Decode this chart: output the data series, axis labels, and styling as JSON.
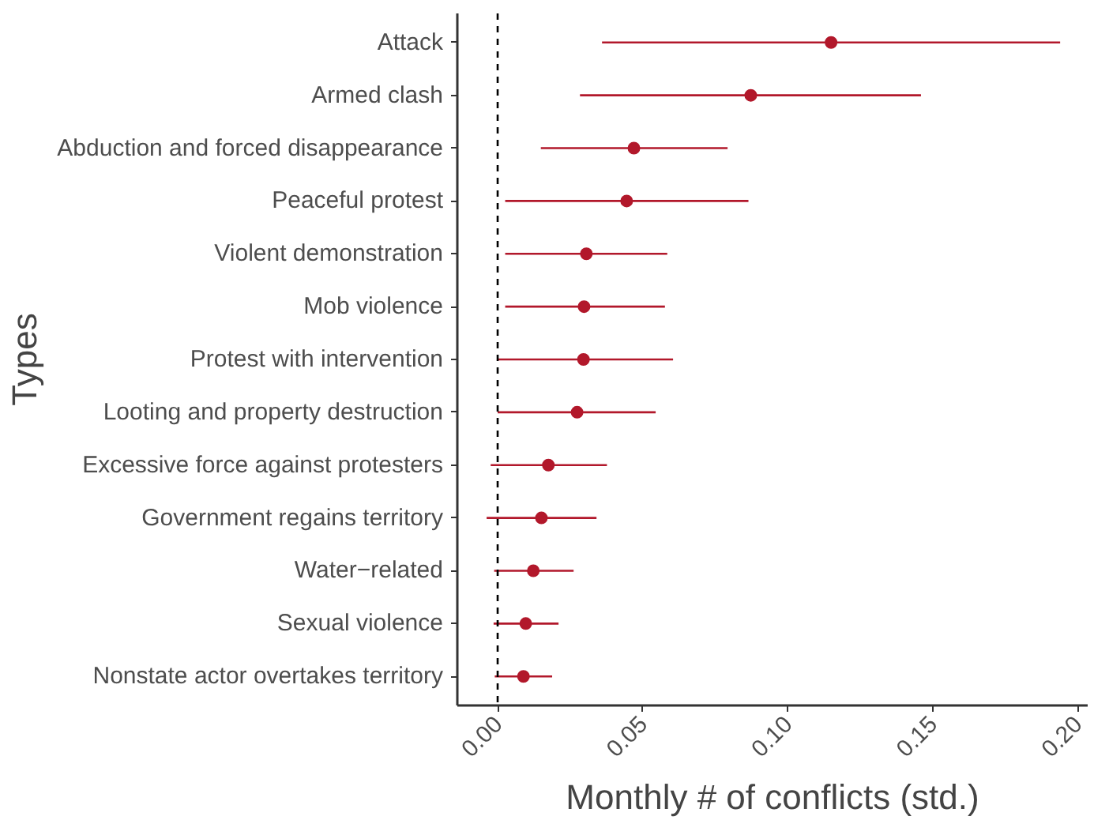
{
  "chart_data": {
    "type": "scatter",
    "orientation": "horizontal",
    "xlabel": "Monthly # of conflicts (std.)",
    "ylabel": "Types",
    "categories": [
      "Attack",
      "Armed clash",
      "Abduction and forced disappearance",
      "Peaceful protest",
      "Violent demonstration",
      "Mob violence",
      "Protest with intervention",
      "Looting and property destruction",
      "Excessive force against protesters",
      "Government regains territory",
      "Water−related",
      "Sexual violence",
      "Nonstate actor overtakes territory"
    ],
    "series": [
      {
        "color": "#b2182b",
        "values": [
          0.115,
          0.0873,
          0.047,
          0.0445,
          0.0306,
          0.0298,
          0.0296,
          0.0274,
          0.0175,
          0.0151,
          0.0123,
          0.0097,
          0.0089
        ],
        "errors": [
          [
            0.036,
            0.194
          ],
          [
            0.0284,
            0.146
          ],
          [
            0.0149,
            0.0793
          ],
          [
            0.0026,
            0.0865
          ],
          [
            0.0026,
            0.0585
          ],
          [
            0.0026,
            0.0577
          ],
          [
            0.0,
            0.0605
          ],
          [
            0.0,
            0.0545
          ],
          [
            -0.0024,
            0.0377
          ],
          [
            -0.0038,
            0.0341
          ],
          [
            -0.0012,
            0.0262
          ],
          [
            -0.0014,
            0.021
          ],
          [
            -0.001,
            0.0188
          ]
        ]
      }
    ],
    "xlim": [
      -0.0139,
      0.2035
    ],
    "xticks": [
      {
        "value": 0,
        "label": "0.00"
      },
      {
        "value": 0.05,
        "label": "0.05"
      },
      {
        "value": 0.1,
        "label": "0.10"
      },
      {
        "value": 0.15,
        "label": "0.15"
      },
      {
        "value": 0.2,
        "label": "0.20"
      }
    ],
    "ref_lines": [
      {
        "axis": "x",
        "value": 0,
        "color": "#000000",
        "line_style": "dashed"
      }
    ],
    "marker": "circle",
    "grid": false
  }
}
